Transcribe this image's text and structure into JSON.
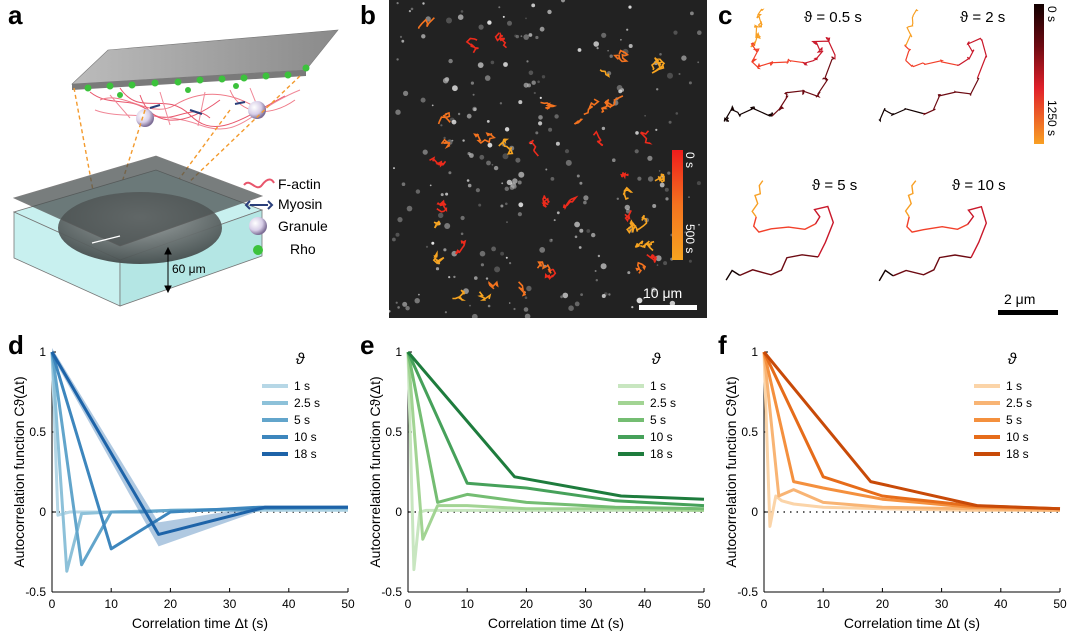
{
  "panels": {
    "a": "a",
    "b": "b",
    "c": "c",
    "d": "d",
    "e": "e",
    "f": "f"
  },
  "schematic": {
    "legend": [
      "F-actin",
      "Myosin",
      "Granule",
      "Rho"
    ],
    "depth_label": "60 μm",
    "colors": {
      "factin": "#e8566c",
      "myosin": "#2a3f7a",
      "rho": "#3cc23c",
      "water": "#c8f0ef"
    }
  },
  "micrograph": {
    "colorbar_top": "0 s",
    "colorbar_bottom": "500 s",
    "scale_label": "10 μm",
    "track_colors": [
      "#ee2b1c",
      "#f4731f",
      "#f7a420"
    ]
  },
  "trajectories": {
    "titles": [
      "ϑ = 0.5 s",
      "ϑ = 2 s",
      "ϑ = 5 s",
      "ϑ = 10 s"
    ],
    "colorbar_top": "0 s",
    "colorbar_bottom": "1250 s",
    "scale_label": "2 μm",
    "colorbar_colors": [
      "#120000",
      "#6d0a12",
      "#c9182a",
      "#f2402a",
      "#f8a024"
    ]
  },
  "chart_data": [
    {
      "type": "line",
      "panel": "d",
      "xlabel": "Correlation time Δt (s)",
      "ylabel": "Autocorrelation function Cϑ(Δt)",
      "xlim": [
        0,
        50
      ],
      "ylim": [
        -0.5,
        1
      ],
      "xticks": [
        0,
        10,
        20,
        30,
        40,
        50
      ],
      "yticks": [
        -0.5,
        0,
        0.5,
        1
      ],
      "legend_title": "ϑ",
      "series": [
        {
          "name": "1 s",
          "color": "#b6d7e6",
          "x": [
            0,
            1,
            2,
            3,
            5,
            10,
            20,
            35,
            50
          ],
          "y": [
            1,
            -0.02,
            -0.01,
            0.0,
            0.0,
            0.0,
            0.01,
            0.01,
            0.01
          ]
        },
        {
          "name": "2.5 s",
          "color": "#8dc1d9",
          "x": [
            0,
            2.5,
            5,
            10,
            20,
            35,
            50
          ],
          "y": [
            1,
            -0.37,
            -0.01,
            0.0,
            0.01,
            0.02,
            0.02
          ]
        },
        {
          "name": "5 s",
          "color": "#62a5cb",
          "x": [
            0,
            5,
            10,
            15,
            20,
            35,
            50
          ],
          "y": [
            1,
            -0.33,
            0.0,
            0.0,
            0.01,
            0.02,
            0.03
          ]
        },
        {
          "name": "10 s",
          "color": "#3d86bd",
          "x": [
            0,
            10,
            20,
            35,
            50
          ],
          "y": [
            1,
            -0.23,
            0.0,
            0.03,
            0.03
          ]
        },
        {
          "name": "18 s",
          "color": "#1d63a8",
          "x": [
            0,
            18,
            36,
            50
          ],
          "y": [
            1,
            -0.14,
            0.03,
            0.03
          ],
          "band": [
            0.05,
            0.15,
            0.02,
            0.02
          ]
        }
      ]
    },
    {
      "type": "line",
      "panel": "e",
      "xlabel": "Correlation time Δt (s)",
      "ylabel": "Autocorrelation function Cϑ(Δt)",
      "xlim": [
        0,
        50
      ],
      "ylim": [
        -0.5,
        1
      ],
      "xticks": [
        0,
        10,
        20,
        30,
        40,
        50
      ],
      "yticks": [
        -0.5,
        0,
        0.5,
        1
      ],
      "legend_title": "ϑ",
      "series": [
        {
          "name": "1 s",
          "color": "#c8e6c0",
          "x": [
            0,
            1,
            2,
            3,
            5,
            10,
            20,
            35,
            50
          ],
          "y": [
            1,
            -0.36,
            0.0,
            0.01,
            0.01,
            0.01,
            0.01,
            0.01,
            0.01
          ]
        },
        {
          "name": "2.5 s",
          "color": "#a2d493",
          "x": [
            0,
            2.5,
            5,
            10,
            20,
            35,
            50
          ],
          "y": [
            1,
            -0.17,
            0.04,
            0.04,
            0.02,
            0.02,
            0.01
          ]
        },
        {
          "name": "5 s",
          "color": "#74bd72",
          "x": [
            0,
            5,
            10,
            20,
            35,
            50
          ],
          "y": [
            1,
            0.06,
            0.11,
            0.06,
            0.03,
            0.02
          ]
        },
        {
          "name": "10 s",
          "color": "#46a15a",
          "x": [
            0,
            10,
            20,
            35,
            50
          ],
          "y": [
            1,
            0.18,
            0.15,
            0.07,
            0.04
          ]
        },
        {
          "name": "18 s",
          "color": "#1e7c3d",
          "x": [
            0,
            18,
            36,
            50
          ],
          "y": [
            1,
            0.22,
            0.1,
            0.08
          ]
        }
      ]
    },
    {
      "type": "line",
      "panel": "f",
      "xlabel": "Correlation time Δt (s)",
      "ylabel": "Autocorrelation function Cϑ(Δt)",
      "xlim": [
        0,
        50
      ],
      "ylim": [
        -0.5,
        1
      ],
      "xticks": [
        0,
        10,
        20,
        30,
        40,
        50
      ],
      "yticks": [
        -0.5,
        0,
        0.5,
        1
      ],
      "legend_title": "ϑ",
      "series": [
        {
          "name": "1 s",
          "color": "#fbd4a8",
          "x": [
            0,
            1,
            2,
            3,
            5,
            10,
            20,
            35,
            50
          ],
          "y": [
            1,
            -0.09,
            0.1,
            0.07,
            0.05,
            0.03,
            0.02,
            0.01,
            0.01
          ]
        },
        {
          "name": "2.5 s",
          "color": "#f8b474",
          "x": [
            0,
            2.5,
            5,
            10,
            20,
            35,
            50
          ],
          "y": [
            1,
            0.1,
            0.14,
            0.06,
            0.03,
            0.02,
            0.01
          ]
        },
        {
          "name": "5 s",
          "color": "#f4903e",
          "x": [
            0,
            5,
            10,
            20,
            35,
            50
          ],
          "y": [
            1,
            0.19,
            0.15,
            0.08,
            0.03,
            0.02
          ]
        },
        {
          "name": "10 s",
          "color": "#e66c1a",
          "x": [
            0,
            10,
            20,
            35,
            50
          ],
          "y": [
            1,
            0.22,
            0.1,
            0.04,
            0.02
          ]
        },
        {
          "name": "18 s",
          "color": "#c84a08",
          "x": [
            0,
            18,
            36,
            50
          ],
          "y": [
            1,
            0.19,
            0.04,
            0.02
          ]
        }
      ]
    }
  ]
}
